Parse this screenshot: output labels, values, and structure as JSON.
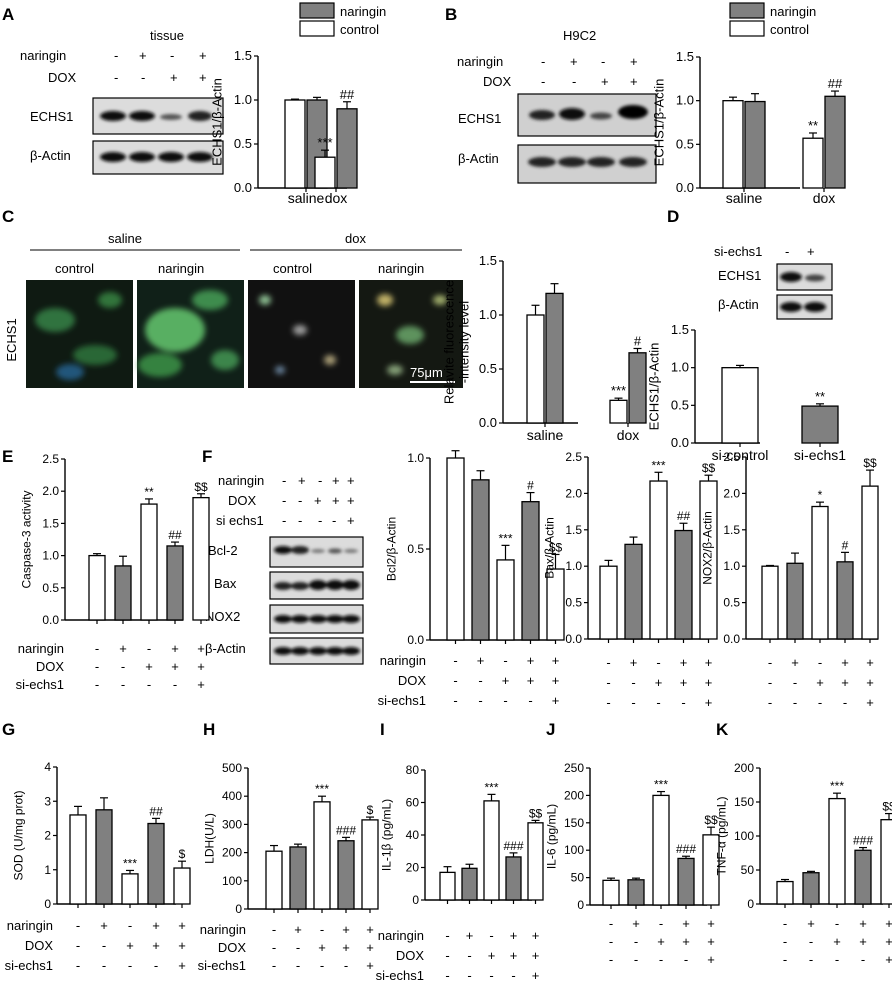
{
  "panel_letters": [
    "A",
    "B",
    "C",
    "D",
    "E",
    "F",
    "G",
    "H",
    "I",
    "J",
    "K"
  ],
  "legend": {
    "naringin": "naringin",
    "control": "control"
  },
  "blots": {
    "A": {
      "title": "tissue",
      "row_labels": [
        "naringin",
        "DOX"
      ],
      "signs": [
        [
          "-",
          "+",
          "-",
          "+"
        ],
        [
          "-",
          "-",
          "+",
          "+"
        ]
      ],
      "bands": [
        "ECHS1",
        "β-Actin"
      ]
    },
    "B": {
      "title": "H9C2",
      "row_labels": [
        "naringin",
        "DOX"
      ],
      "signs": [
        [
          "-",
          "+",
          "-",
          "+"
        ],
        [
          "-",
          "-",
          "+",
          "+"
        ]
      ],
      "bands": [
        "ECHS1",
        "β-Actin"
      ]
    },
    "D": {
      "row_labels": [
        "si-echs1"
      ],
      "signs": [
        [
          "-",
          "+"
        ]
      ],
      "bands": [
        "ECHS1",
        "β-Actin"
      ]
    },
    "F": {
      "row_labels": [
        "naringin",
        "DOX",
        "si echs1"
      ],
      "signs": [
        [
          "-",
          "+",
          "-",
          "+",
          "+"
        ],
        [
          "-",
          "-",
          "+",
          "+",
          "+"
        ],
        [
          "-",
          "-",
          "-",
          "-",
          "+"
        ]
      ],
      "bands": [
        "Bcl-2",
        "Bax",
        "NOX2",
        "β-Actin"
      ]
    }
  },
  "micro": {
    "groups": [
      "saline",
      "dox"
    ],
    "columns": [
      "control",
      "naringin",
      "control",
      "naringin"
    ],
    "row_label": "ECHS1",
    "scalebar": "75μm"
  },
  "chart_data": [
    {
      "panel": "A",
      "type": "bar",
      "ylabel": "ECHS1/β-Actin",
      "ylim": [
        0,
        1.5
      ],
      "yticks": [
        "0.0",
        "0.5",
        "1.0",
        "1.5"
      ],
      "categories": [
        "saline",
        "dox"
      ],
      "series": [
        {
          "name": "control",
          "color": "#ffffff",
          "values": [
            1.0,
            0.35
          ],
          "err": [
            0.01,
            0.08
          ],
          "marks": [
            "",
            "***"
          ]
        },
        {
          "name": "naringin",
          "color": "#808080",
          "values": [
            1.0,
            0.9
          ],
          "err": [
            0.03,
            0.08
          ],
          "marks": [
            "",
            "##"
          ]
        }
      ]
    },
    {
      "panel": "B",
      "type": "bar",
      "ylabel": "ECHS1/β-Actin",
      "ylim": [
        0,
        1.5
      ],
      "yticks": [
        "0.0",
        "0.5",
        "1.0",
        "1.5"
      ],
      "categories": [
        "saline",
        "dox"
      ],
      "series": [
        {
          "name": "control",
          "color": "#ffffff",
          "values": [
            1.0,
            0.57
          ],
          "err": [
            0.04,
            0.06
          ],
          "marks": [
            "",
            "**"
          ]
        },
        {
          "name": "naringin",
          "color": "#808080",
          "values": [
            0.99,
            1.05
          ],
          "err": [
            0.09,
            0.06
          ],
          "marks": [
            "",
            "##"
          ]
        }
      ]
    },
    {
      "panel": "C",
      "type": "bar",
      "ylabel": "Relavite fluorescence\n-intensity level",
      "ylim": [
        0,
        1.5
      ],
      "yticks": [
        "0.0",
        "0.5",
        "1.0",
        "1.5"
      ],
      "categories": [
        "saline",
        "dox"
      ],
      "series": [
        {
          "name": "control",
          "color": "#ffffff",
          "values": [
            1.0,
            0.21
          ],
          "err": [
            0.09,
            0.02
          ],
          "marks": [
            "",
            "***"
          ]
        },
        {
          "name": "naringin",
          "color": "#808080",
          "values": [
            1.2,
            0.65
          ],
          "err": [
            0.09,
            0.04
          ],
          "marks": [
            "",
            "#"
          ]
        }
      ]
    },
    {
      "panel": "D",
      "type": "bar",
      "ylabel": "ECHS1/β-Actin",
      "ylim": [
        0,
        1.5
      ],
      "yticks": [
        "0.0",
        "0.5",
        "1.0",
        "1.5"
      ],
      "categories": [
        "si-control",
        "si-echs1"
      ],
      "series": [
        {
          "values": [
            1.0,
            0.49
          ],
          "err": [
            0.03,
            0.03
          ],
          "colors": [
            "#ffffff",
            "#808080"
          ],
          "marks": [
            "",
            "**"
          ]
        }
      ]
    },
    {
      "panel": "E",
      "type": "bar",
      "ylabel": "Caspase-3 activity",
      "ylim": [
        0,
        2.5
      ],
      "yticks": [
        "0.0",
        "0.5",
        "1.0",
        "1.5",
        "2.0",
        "2.5"
      ],
      "tick_rows": [
        [
          "naringin",
          "-",
          "+",
          "-",
          "+",
          "+"
        ],
        [
          "DOX",
          "-",
          "-",
          "+",
          "+",
          "+"
        ],
        [
          "si-echs1",
          "-",
          "-",
          "-",
          "-",
          "+"
        ]
      ],
      "series": [
        {
          "values": [
            1.0,
            0.84,
            1.8,
            1.15,
            1.9
          ],
          "err": [
            0.03,
            0.15,
            0.08,
            0.06,
            0.06
          ],
          "colors": [
            "#ffffff",
            "#808080",
            "#ffffff",
            "#808080",
            "#ffffff"
          ],
          "marks": [
            "",
            "",
            "**",
            "##",
            "$$"
          ]
        }
      ]
    },
    {
      "panel": "F1",
      "type": "bar",
      "ylabel": "Bcl2/β-Actin",
      "ylim": [
        0,
        1.0
      ],
      "yticks": [
        "0.0",
        "0.5",
        "1.0"
      ],
      "tick_rows": [
        [
          "naringin",
          "-",
          "+",
          "-",
          "+",
          "+"
        ],
        [
          "DOX",
          "-",
          "-",
          "+",
          "+",
          "+"
        ],
        [
          "si-echs1",
          "-",
          "-",
          "-",
          "-",
          "+"
        ]
      ],
      "series": [
        {
          "values": [
            1.0,
            0.88,
            0.44,
            0.76,
            0.39
          ],
          "err": [
            0.04,
            0.05,
            0.08,
            0.05,
            0.08
          ],
          "colors": [
            "#ffffff",
            "#808080",
            "#ffffff",
            "#808080",
            "#ffffff"
          ],
          "marks": [
            "",
            "",
            "***",
            "#",
            "$$"
          ]
        }
      ]
    },
    {
      "panel": "F2",
      "type": "bar",
      "ylabel": "Bax/β-Actin",
      "ylim": [
        0,
        2.5
      ],
      "yticks": [
        "0.0",
        "0.5",
        "1.0",
        "1.5",
        "2.0",
        "2.5"
      ],
      "tick_rows": [
        [
          "",
          "-",
          "+",
          "-",
          "+",
          "+"
        ],
        [
          "",
          "-",
          "-",
          "+",
          "+",
          "+"
        ],
        [
          "",
          "-",
          "-",
          "-",
          "-",
          "+"
        ]
      ],
      "series": [
        {
          "values": [
            1.0,
            1.3,
            2.17,
            1.49,
            2.17
          ],
          "err": [
            0.08,
            0.1,
            0.12,
            0.1,
            0.08
          ],
          "colors": [
            "#ffffff",
            "#808080",
            "#ffffff",
            "#808080",
            "#ffffff"
          ],
          "marks": [
            "",
            "",
            "***",
            "##",
            "$$"
          ]
        }
      ]
    },
    {
      "panel": "F3",
      "type": "bar",
      "ylabel": "NOX2/β-Actin",
      "ylim": [
        0,
        2.5
      ],
      "yticks": [
        "0.0",
        "0.5",
        "1.0",
        "1.5",
        "2.0",
        "2.5"
      ],
      "tick_rows": [
        [
          "",
          "-",
          "+",
          "-",
          "+",
          "+"
        ],
        [
          "",
          "-",
          "-",
          "+",
          "+",
          "+"
        ],
        [
          "",
          "-",
          "-",
          "-",
          "-",
          "+"
        ]
      ],
      "series": [
        {
          "values": [
            1.0,
            1.04,
            1.82,
            1.06,
            2.1
          ],
          "err": [
            0.01,
            0.14,
            0.06,
            0.13,
            0.22
          ],
          "colors": [
            "#ffffff",
            "#808080",
            "#ffffff",
            "#808080",
            "#ffffff"
          ],
          "marks": [
            "",
            "",
            "*",
            "#",
            "$$"
          ]
        }
      ]
    },
    {
      "panel": "G",
      "type": "bar",
      "ylabel": "SOD (U/mg prot)",
      "ylim": [
        0,
        4
      ],
      "yticks": [
        "0",
        "1",
        "2",
        "3",
        "4"
      ],
      "tick_rows": [
        [
          "naringin",
          "-",
          "+",
          "-",
          "+",
          "+"
        ],
        [
          "DOX",
          "-",
          "-",
          "+",
          "+",
          "+"
        ],
        [
          "si-echs1",
          "-",
          "-",
          "-",
          "-",
          "+"
        ]
      ],
      "series": [
        {
          "values": [
            2.6,
            2.75,
            0.88,
            2.35,
            1.05
          ],
          "err": [
            0.25,
            0.35,
            0.1,
            0.15,
            0.2
          ],
          "colors": [
            "#ffffff",
            "#808080",
            "#ffffff",
            "#808080",
            "#ffffff"
          ],
          "marks": [
            "",
            "",
            "***",
            "##",
            "$"
          ]
        }
      ]
    },
    {
      "panel": "H",
      "type": "bar",
      "ylabel": "LDH(U/L)",
      "ylim": [
        0,
        500
      ],
      "yticks": [
        "0",
        "100",
        "200",
        "300",
        "400",
        "500"
      ],
      "tick_rows": [
        [
          "naringin",
          "-",
          "+",
          "-",
          "+",
          "+"
        ],
        [
          "DOX",
          "-",
          "-",
          "+",
          "+",
          "+"
        ],
        [
          "si-echs1",
          "-",
          "-",
          "-",
          "-",
          "+"
        ]
      ],
      "series": [
        {
          "values": [
            205,
            220,
            380,
            242,
            316
          ],
          "err": [
            20,
            10,
            20,
            12,
            10
          ],
          "colors": [
            "#ffffff",
            "#808080",
            "#ffffff",
            "#808080",
            "#ffffff"
          ],
          "marks": [
            "",
            "",
            "***",
            "###",
            "$"
          ]
        }
      ]
    },
    {
      "panel": "I",
      "type": "bar",
      "ylabel": "IL-1β (pg/mL)",
      "ylim": [
        0,
        80
      ],
      "yticks": [
        "0",
        "20",
        "40",
        "60",
        "80"
      ],
      "tick_rows": [
        [
          "naringin",
          "-",
          "+",
          "-",
          "+",
          "+"
        ],
        [
          "DOX",
          "-",
          "-",
          "+",
          "+",
          "+"
        ],
        [
          "si-echs1",
          "-",
          "-",
          "-",
          "-",
          "+"
        ]
      ],
      "series": [
        {
          "values": [
            17,
            19.5,
            61,
            26.5,
            47.5
          ],
          "err": [
            3.5,
            2.5,
            4,
            2.5,
            1.5
          ],
          "colors": [
            "#ffffff",
            "#808080",
            "#ffffff",
            "#808080",
            "#ffffff"
          ],
          "marks": [
            "",
            "",
            "***",
            "###",
            "$$"
          ]
        }
      ]
    },
    {
      "panel": "J",
      "type": "bar",
      "ylabel": "IL-6 (pg/mL)",
      "ylim": [
        0,
        250
      ],
      "yticks": [
        "0",
        "50",
        "100",
        "150",
        "200",
        "250"
      ],
      "tick_rows": [
        [
          "",
          "-",
          "+",
          "-",
          "+",
          "+"
        ],
        [
          "",
          "-",
          "-",
          "+",
          "+",
          "+"
        ],
        [
          "",
          "-",
          "-",
          "-",
          "-",
          "+"
        ]
      ],
      "series": [
        {
          "values": [
            45,
            46,
            200,
            85,
            128
          ],
          "err": [
            4,
            3,
            7,
            4,
            14
          ],
          "colors": [
            "#ffffff",
            "#808080",
            "#ffffff",
            "#808080",
            "#ffffff"
          ],
          "marks": [
            "",
            "",
            "***",
            "###",
            "$$"
          ]
        }
      ]
    },
    {
      "panel": "K",
      "type": "bar",
      "ylabel": "TNF-α  (pg/mL)",
      "ylim": [
        0,
        200
      ],
      "yticks": [
        "0",
        "50",
        "100",
        "150",
        "200"
      ],
      "tick_rows": [
        [
          "",
          "-",
          "+",
          "-",
          "+",
          "+"
        ],
        [
          "",
          "-",
          "-",
          "+",
          "+",
          "+"
        ],
        [
          "",
          "-",
          "-",
          "-",
          "-",
          "+"
        ]
      ],
      "series": [
        {
          "values": [
            33,
            46,
            155,
            79,
            124
          ],
          "err": [
            3,
            2,
            8,
            4,
            9
          ],
          "colors": [
            "#ffffff",
            "#808080",
            "#ffffff",
            "#808080",
            "#ffffff"
          ],
          "marks": [
            "",
            "",
            "***",
            "###",
            "$$"
          ]
        }
      ]
    }
  ]
}
